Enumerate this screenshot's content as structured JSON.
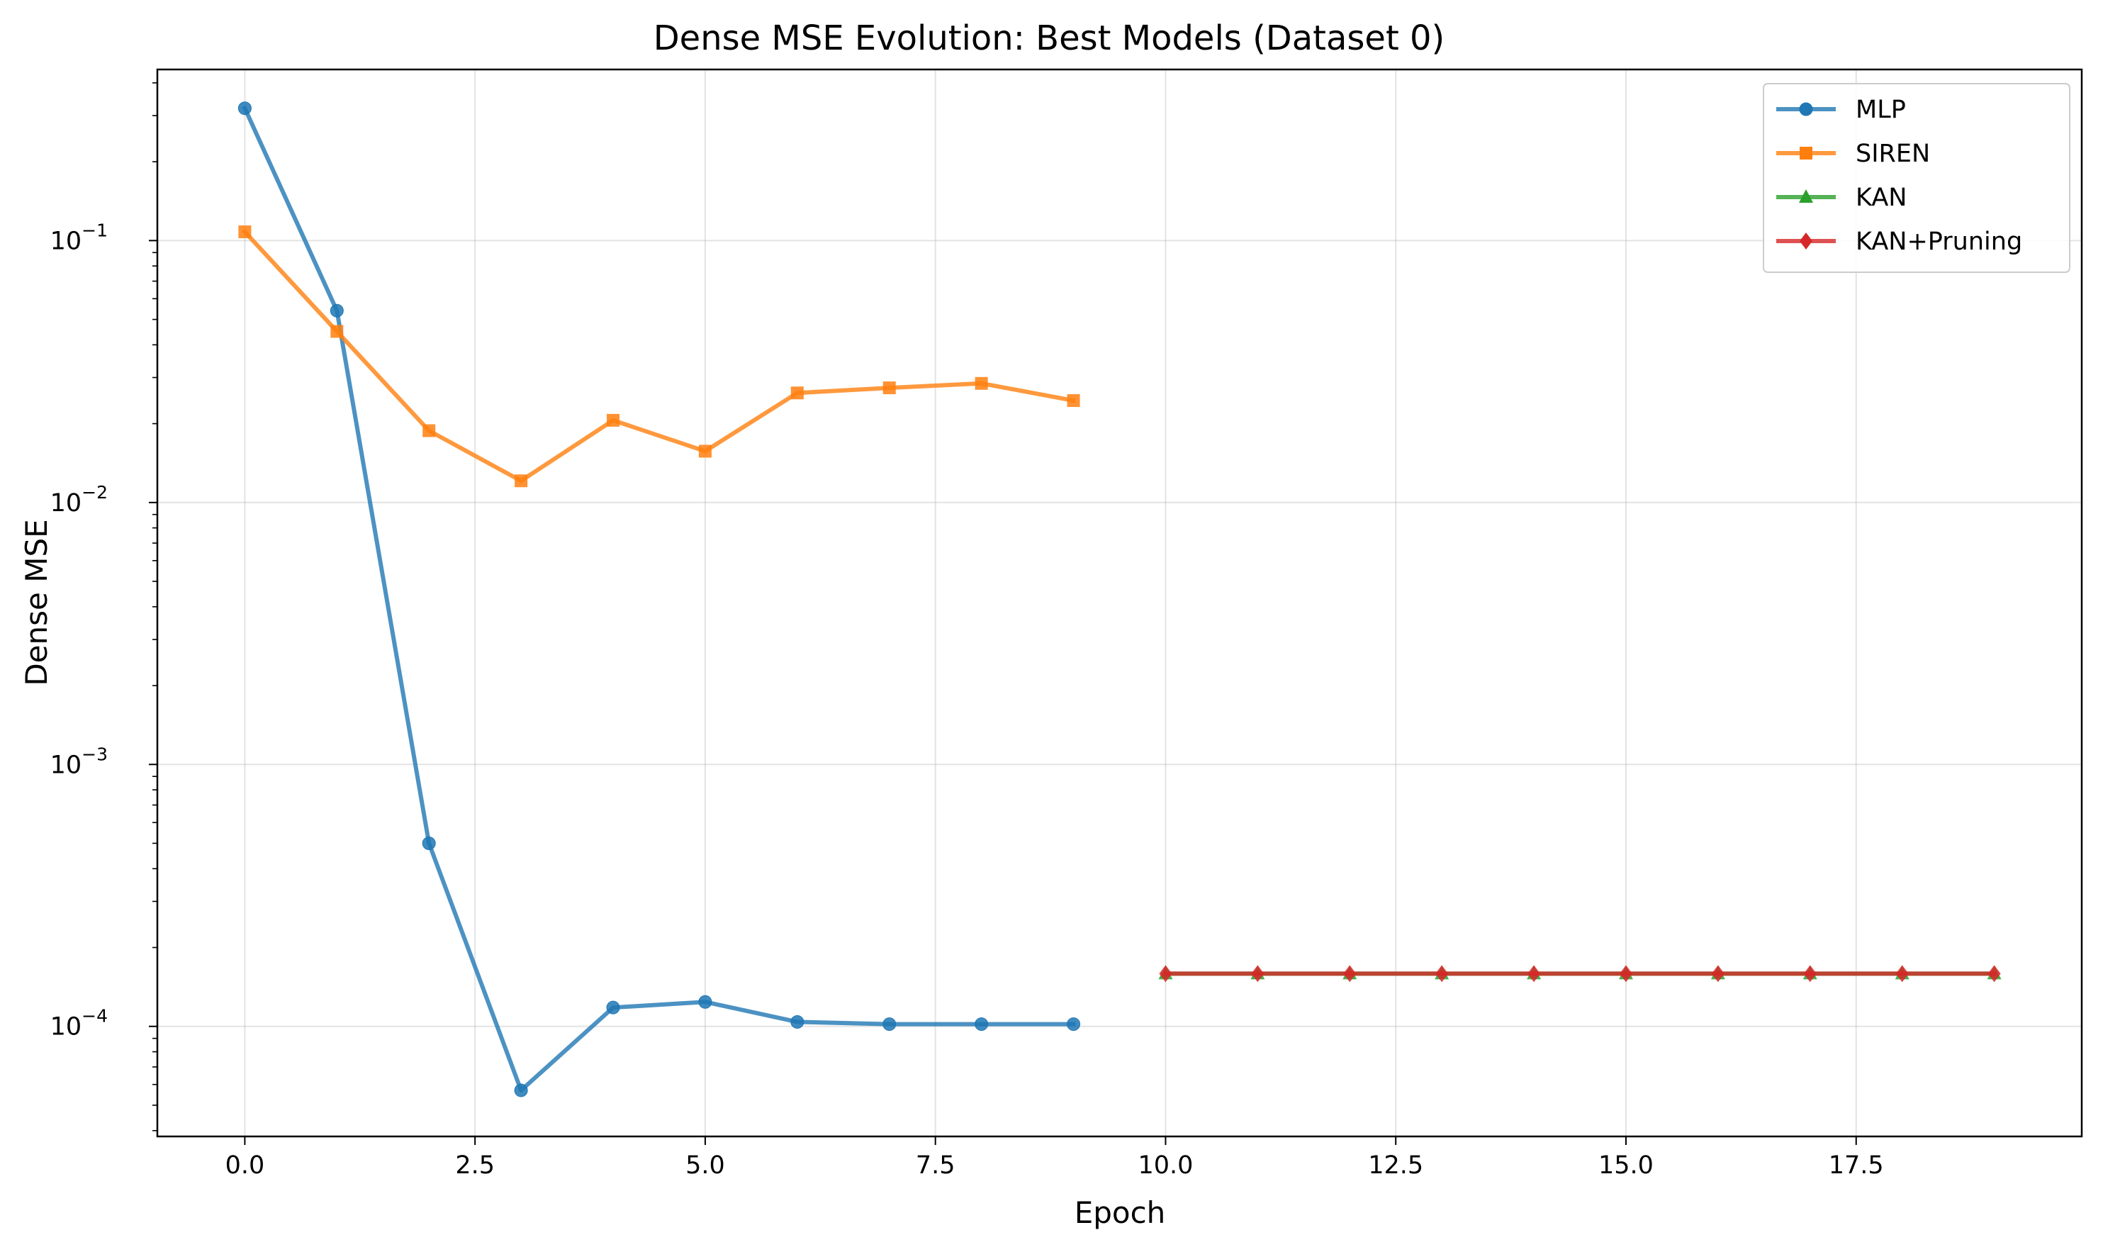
{
  "chart_data": {
    "type": "line",
    "title": "Dense MSE Evolution: Best Models (Dataset 0)",
    "xlabel": "Epoch",
    "ylabel": "Dense MSE",
    "xlim": [
      -0.95,
      19.95
    ],
    "ylim": [
      3.8e-05,
      0.45
    ],
    "yscale": "log",
    "grid": true,
    "legend_position": "top-right",
    "x_ticks": [
      {
        "value": 0,
        "label": "0.0"
      },
      {
        "value": 2.5,
        "label": "2.5"
      },
      {
        "value": 5,
        "label": "5.0"
      },
      {
        "value": 7.5,
        "label": "7.5"
      },
      {
        "value": 10,
        "label": "10.0"
      },
      {
        "value": 12.5,
        "label": "12.5"
      },
      {
        "value": 15,
        "label": "15.0"
      },
      {
        "value": 17.5,
        "label": "17.5"
      }
    ],
    "y_ticks": [
      {
        "value": 0.1,
        "exp": "−1"
      },
      {
        "value": 0.01,
        "exp": "−2"
      },
      {
        "value": 0.001,
        "exp": "−3"
      },
      {
        "value": 0.0001,
        "exp": "−4"
      }
    ],
    "y_tick_base": "10",
    "series": [
      {
        "name": "MLP",
        "color": "#1f77b4",
        "marker": "circle",
        "x": [
          0,
          1,
          2,
          3,
          4,
          5,
          6,
          7,
          8,
          9
        ],
        "y": [
          0.32,
          0.054,
          0.0005,
          5.7e-05,
          0.000118,
          0.000124,
          0.000104,
          0.000102,
          0.000102,
          0.000102
        ]
      },
      {
        "name": "SIREN",
        "color": "#ff7f0e",
        "marker": "square",
        "x": [
          0,
          1,
          2,
          3,
          4,
          5,
          6,
          7,
          8,
          9
        ],
        "y": [
          0.108,
          0.045,
          0.0188,
          0.0121,
          0.0206,
          0.0157,
          0.0262,
          0.0274,
          0.0285,
          0.0245
        ]
      },
      {
        "name": "KAN",
        "color": "#2ca02c",
        "marker": "triangle",
        "x": [
          10,
          11,
          12,
          13,
          14,
          15,
          16,
          17,
          18,
          19
        ],
        "y": [
          0.000159,
          0.000159,
          0.000159,
          0.000159,
          0.000159,
          0.000159,
          0.000159,
          0.000159,
          0.000159,
          0.000159
        ]
      },
      {
        "name": "KAN+Pruning",
        "color": "#d62728",
        "marker": "diamond",
        "x": [
          10,
          11,
          12,
          13,
          14,
          15,
          16,
          17,
          18,
          19
        ],
        "y": [
          0.000159,
          0.000159,
          0.000159,
          0.000159,
          0.000159,
          0.000159,
          0.000159,
          0.000159,
          0.000159,
          0.000159
        ]
      }
    ]
  }
}
